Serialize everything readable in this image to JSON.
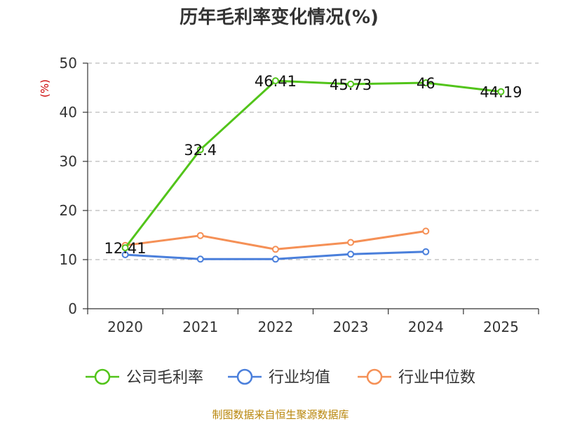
{
  "chart_data": {
    "type": "line",
    "title": "历年毛利率变化情况(%)",
    "ylabel": "(%)",
    "xlabel": "",
    "categories": [
      "2020",
      "2021",
      "2022",
      "2023",
      "2024",
      "2025"
    ],
    "ylim": [
      0,
      50
    ],
    "yticks": [
      0,
      10,
      20,
      30,
      40,
      50
    ],
    "grid": "horizontal dashed",
    "legend_position": "bottom",
    "series": [
      {
        "name": "公司毛利率",
        "color": "#52c41a",
        "values": [
          12.41,
          32.4,
          46.41,
          45.73,
          46,
          44.19
        ],
        "labels": [
          "12.41",
          "32.4",
          "46.41",
          "45.73",
          "46",
          "44.19"
        ]
      },
      {
        "name": "行业均值",
        "color": "#4a7fdb",
        "values": [
          11.0,
          10.1,
          10.1,
          11.1,
          11.6,
          null
        ]
      },
      {
        "name": "行业中位数",
        "color": "#f59056",
        "values": [
          12.9,
          14.9,
          12.1,
          13.5,
          15.8,
          null
        ]
      }
    ]
  },
  "source": "制图数据来自恒生聚源数据库"
}
